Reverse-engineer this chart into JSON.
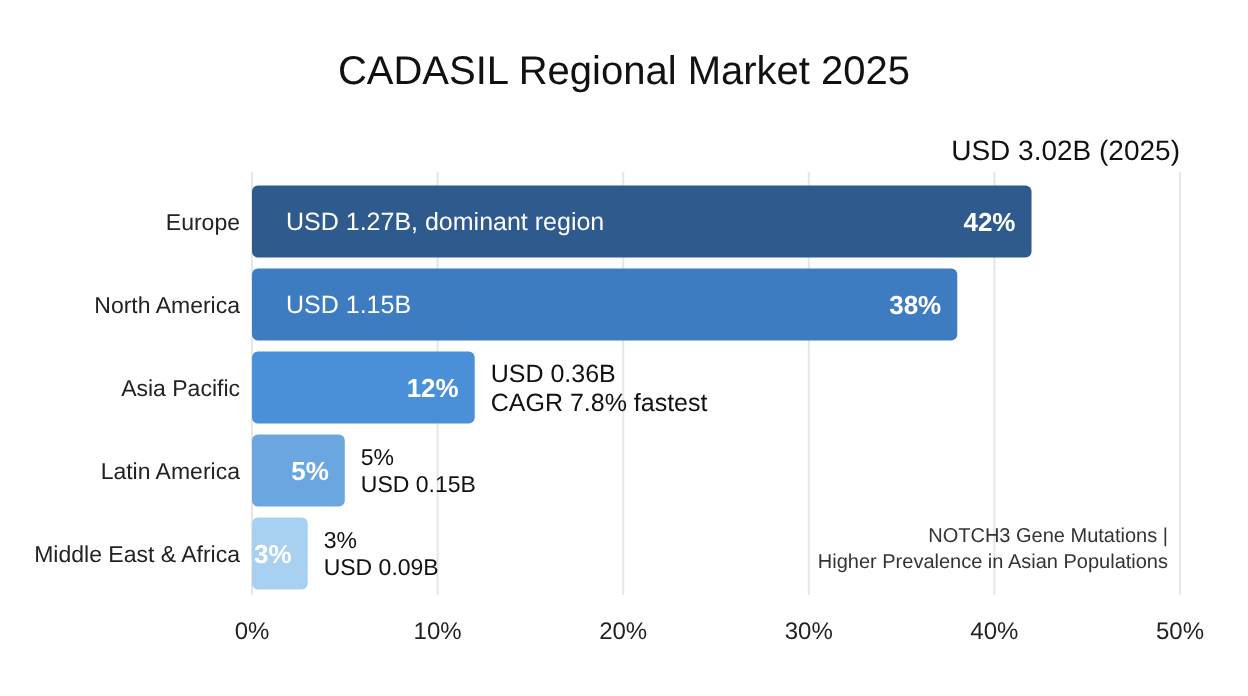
{
  "chart_data": {
    "type": "bar",
    "orientation": "horizontal",
    "title": "CADASIL Regional Market 2025",
    "subtitle": "USD 3.02B (2025)",
    "categories": [
      "Europe",
      "North America",
      "Asia Pacific",
      "Latin America",
      "Middle East & Africa"
    ],
    "values": [
      42,
      38,
      12,
      5,
      3
    ],
    "colors": [
      "#2e5a8e",
      "#3d7cc0",
      "#4a90d9",
      "#6aa6e0",
      "#a8d0f0"
    ],
    "value_labels": [
      "42%",
      "38%",
      "12%",
      "5%",
      "3%"
    ],
    "xlim": [
      0,
      50
    ],
    "xticks": [
      {
        "value": 0,
        "label": "0%"
      },
      {
        "value": 10,
        "label": "10%"
      },
      {
        "value": 20,
        "label": "20%"
      },
      {
        "value": 30,
        "label": "30%"
      },
      {
        "value": 40,
        "label": "40%"
      },
      {
        "value": 50,
        "label": "50%"
      }
    ],
    "grid": "x",
    "annotations": [
      {
        "text": "USD 1.27B, dominant region",
        "x": 0,
        "y": "Europe"
      },
      {
        "text": "USD 1.15B",
        "x": 0,
        "y": "North America"
      },
      {
        "text": "USD 0.36B\nCAGR 7.8% fastest",
        "x": 12,
        "y": "Asia Pacific"
      },
      {
        "text": "5%\nUSD 0.15B",
        "x": 5,
        "y": "Latin America"
      },
      {
        "text": "3%\nUSD 0.09B",
        "x": 3,
        "y": "Middle East & Africa"
      },
      "NOTCH3 Gene Mutations |\nHigher Prevalence in Asian Populations"
    ]
  }
}
